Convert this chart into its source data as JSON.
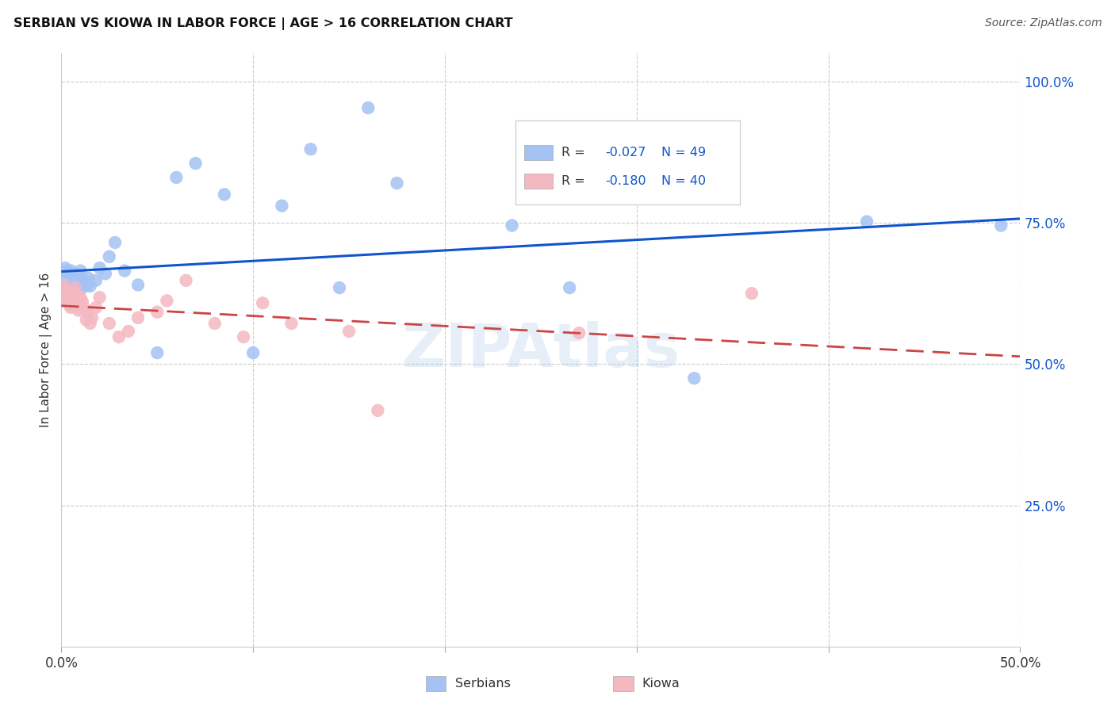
{
  "title": "SERBIAN VS KIOWA IN LABOR FORCE | AGE > 16 CORRELATION CHART",
  "source": "Source: ZipAtlas.com",
  "ylabel_label": "In Labor Force | Age > 16",
  "x_min": 0.0,
  "x_max": 0.5,
  "y_min": 0.0,
  "y_max": 1.05,
  "y_ticks": [
    0.25,
    0.5,
    0.75,
    1.0
  ],
  "y_tick_labels": [
    "25.0%",
    "50.0%",
    "75.0%",
    "100.0%"
  ],
  "serbian_color": "#a4c2f4",
  "kiowa_color": "#f4b8c1",
  "serbian_line_color": "#1155cc",
  "kiowa_line_color": "#cc4444",
  "watermark": "ZIPAtlas",
  "legend_R_label": "R = ",
  "legend_N_label": "N = ",
  "legend_serbian_R": "-0.027",
  "legend_serbian_N": "49",
  "legend_kiowa_R": "-0.180",
  "legend_kiowa_N": "40",
  "legend_text_color": "#1155cc",
  "serbian_x": [
    0.001,
    0.002,
    0.002,
    0.003,
    0.003,
    0.003,
    0.004,
    0.004,
    0.005,
    0.005,
    0.005,
    0.006,
    0.006,
    0.007,
    0.007,
    0.007,
    0.008,
    0.008,
    0.009,
    0.009,
    0.01,
    0.01,
    0.011,
    0.012,
    0.013,
    0.014,
    0.015,
    0.018,
    0.02,
    0.023,
    0.025,
    0.028,
    0.033,
    0.04,
    0.05,
    0.06,
    0.07,
    0.085,
    0.1,
    0.115,
    0.13,
    0.145,
    0.16,
    0.175,
    0.235,
    0.265,
    0.33,
    0.42,
    0.49
  ],
  "serbian_y": [
    0.645,
    0.655,
    0.67,
    0.635,
    0.65,
    0.665,
    0.64,
    0.655,
    0.63,
    0.648,
    0.665,
    0.64,
    0.658,
    0.625,
    0.645,
    0.66,
    0.638,
    0.65,
    0.628,
    0.645,
    0.655,
    0.665,
    0.642,
    0.648,
    0.638,
    0.652,
    0.638,
    0.648,
    0.67,
    0.66,
    0.69,
    0.715,
    0.665,
    0.64,
    0.52,
    0.83,
    0.855,
    0.8,
    0.52,
    0.78,
    0.88,
    0.635,
    0.953,
    0.82,
    0.745,
    0.635,
    0.475,
    0.752,
    0.745
  ],
  "kiowa_x": [
    0.001,
    0.002,
    0.002,
    0.003,
    0.003,
    0.004,
    0.004,
    0.005,
    0.005,
    0.006,
    0.006,
    0.007,
    0.008,
    0.008,
    0.009,
    0.01,
    0.01,
    0.011,
    0.012,
    0.013,
    0.014,
    0.015,
    0.016,
    0.018,
    0.02,
    0.025,
    0.03,
    0.035,
    0.04,
    0.05,
    0.055,
    0.065,
    0.08,
    0.095,
    0.105,
    0.12,
    0.15,
    0.165,
    0.27,
    0.36
  ],
  "kiowa_y": [
    0.64,
    0.63,
    0.618,
    0.625,
    0.61,
    0.605,
    0.62,
    0.6,
    0.618,
    0.61,
    0.625,
    0.635,
    0.602,
    0.622,
    0.595,
    0.605,
    0.618,
    0.61,
    0.598,
    0.578,
    0.59,
    0.572,
    0.582,
    0.6,
    0.618,
    0.572,
    0.548,
    0.558,
    0.582,
    0.592,
    0.612,
    0.648,
    0.572,
    0.548,
    0.608,
    0.572,
    0.558,
    0.418,
    0.555,
    0.625
  ]
}
